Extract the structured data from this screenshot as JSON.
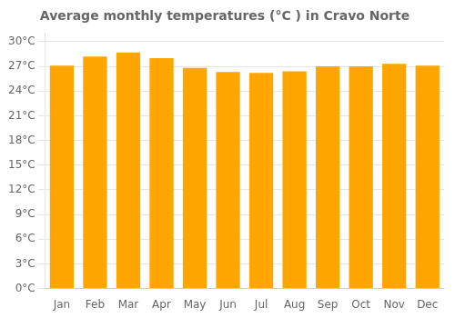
{
  "chart_data": {
    "type": "bar",
    "title": "Average monthly temperatures (°C ) in Cravo Norte",
    "categories": [
      "Jan",
      "Feb",
      "Mar",
      "Apr",
      "May",
      "Jun",
      "Jul",
      "Aug",
      "Sep",
      "Oct",
      "Nov",
      "Dec"
    ],
    "values": [
      27.1,
      28.2,
      28.7,
      28.0,
      26.8,
      26.3,
      26.2,
      26.4,
      27.0,
      27.0,
      27.3,
      27.1
    ],
    "color": "#FFA500",
    "ylim": [
      0,
      31
    ],
    "yticks": [
      {
        "value": 0,
        "label": "0°C"
      },
      {
        "value": 3,
        "label": "3°C"
      },
      {
        "value": 6,
        "label": "6°C"
      },
      {
        "value": 9,
        "label": "9°C"
      },
      {
        "value": 12,
        "label": "12°C"
      },
      {
        "value": 15,
        "label": "15°C"
      },
      {
        "value": 18,
        "label": "18°C"
      },
      {
        "value": 21,
        "label": "21°C"
      },
      {
        "value": 24,
        "label": "24°C"
      },
      {
        "value": 27,
        "label": "27°C"
      },
      {
        "value": 30,
        "label": "30°C"
      }
    ],
    "grid": true
  }
}
